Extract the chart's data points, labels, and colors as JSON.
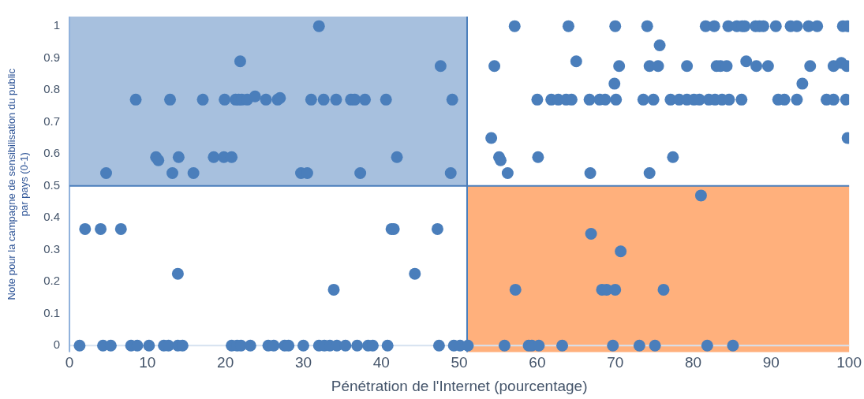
{
  "chart_data": {
    "type": "scatter",
    "xlabel": "Pénétration de l'Internet (pourcentage)",
    "ylabel": "Note pour la campagne de sensibilisation du public par pays (0-1)",
    "xlim": [
      0,
      100
    ],
    "ylim": [
      -0.02,
      1.03
    ],
    "xticks": [
      0,
      10,
      20,
      30,
      40,
      50,
      60,
      70,
      80,
      90,
      100
    ],
    "yticks": [
      0,
      0.1,
      0.2,
      0.3,
      0.4,
      0.5,
      0.6,
      0.7,
      0.8,
      0.9,
      1
    ],
    "marker": "circle",
    "grid": false,
    "legend": false,
    "ref_lines": [
      {
        "axis": "x",
        "value": 51,
        "color": "#4a7ebb"
      },
      {
        "axis": "y",
        "value": 0.5,
        "color": "#4a7ebb"
      }
    ],
    "bands": [
      {
        "axis": "x",
        "from": 0,
        "to": 51,
        "color": "#a7c0de"
      },
      {
        "axis": "x",
        "from": 51,
        "to": 100,
        "color": "#ffb07c"
      }
    ],
    "series": [
      {
        "color": "#4a7ebb",
        "x": [
          32.0,
          21.9,
          8.5,
          12.9,
          17.1,
          19.9,
          21.3,
          21.7,
          22.1,
          22.8,
          23.8,
          25.2,
          26.7,
          27.0,
          31.0,
          32.6,
          34.2,
          36.1,
          36.6,
          37.9,
          40.6,
          49.1,
          47.6,
          11.1,
          11.4,
          14.0,
          18.5,
          19.8,
          20.8,
          42.0,
          4.7,
          13.2,
          15.9,
          29.7,
          30.5,
          37.3,
          48.9,
          57.1,
          64.0,
          70.0,
          74.1,
          81.6,
          82.7,
          84.5,
          85.6,
          86.3,
          86.6,
          88.0,
          88.5,
          89.0,
          90.6,
          92.5,
          93.3,
          94.8,
          95.9,
          99.2,
          99.8,
          75.7,
          65.0,
          86.8,
          54.5,
          70.5,
          74.4,
          75.5,
          79.2,
          83.0,
          83.5,
          84.3,
          88.1,
          89.6,
          95.0,
          98.0,
          99.0,
          99.7,
          69.9,
          94.0,
          60.0,
          61.8,
          62.7,
          63.7,
          64.4,
          66.7,
          68.0,
          68.7,
          70.1,
          73.6,
          74.9,
          77.1,
          78.2,
          79.2,
          80.1,
          80.8,
          82.0,
          82.8,
          83.7,
          84.6,
          86.2,
          90.9,
          91.7,
          93.3,
          97.1,
          98.0,
          99.6,
          54.1,
          55.1,
          55.3,
          56.2,
          60.1,
          99.8,
          77.4,
          66.8,
          74.4,
          2.0,
          4.0,
          6.6,
          41.3,
          41.6,
          47.2,
          13.9,
          44.3,
          33.9,
          1.3,
          4.3,
          5.3,
          7.9,
          8.7,
          10.2,
          12.1,
          12.7,
          13.9,
          14.5,
          20.8,
          21.5,
          22.0,
          23.2,
          25.5,
          26.2,
          27.6,
          28.1,
          30.0,
          32.0,
          32.7,
          33.4,
          34.3,
          35.4,
          36.9,
          38.3,
          38.9,
          40.8,
          47.4,
          49.3,
          50.1,
          51.1,
          55.8,
          58.9,
          59.3,
          60.2,
          63.2,
          69.7,
          73.1,
          75.1,
          81.8,
          85.1,
          57.2,
          81.0,
          66.9,
          70.7,
          68.3,
          68.9,
          70.0,
          76.2
        ],
        "values": [
          1.0,
          0.89,
          0.77,
          0.77,
          0.77,
          0.77,
          0.77,
          0.77,
          0.77,
          0.77,
          0.78,
          0.77,
          0.77,
          0.775,
          0.77,
          0.77,
          0.77,
          0.77,
          0.77,
          0.77,
          0.77,
          0.77,
          0.875,
          0.59,
          0.58,
          0.59,
          0.59,
          0.59,
          0.59,
          0.59,
          0.54,
          0.54,
          0.54,
          0.54,
          0.54,
          0.54,
          0.54,
          1,
          1,
          1,
          1,
          1,
          1,
          1,
          1,
          1,
          1,
          1,
          1,
          1,
          1,
          1,
          1,
          1,
          1,
          1,
          1,
          0.94,
          0.89,
          0.89,
          0.875,
          0.875,
          0.875,
          0.875,
          0.875,
          0.875,
          0.875,
          0.875,
          0.875,
          0.875,
          0.875,
          0.875,
          0.885,
          0.875,
          0.82,
          0.82,
          0.77,
          0.77,
          0.77,
          0.77,
          0.77,
          0.77,
          0.77,
          0.77,
          0.77,
          0.77,
          0.77,
          0.77,
          0.77,
          0.77,
          0.77,
          0.77,
          0.77,
          0.77,
          0.77,
          0.77,
          0.77,
          0.77,
          0.77,
          0.77,
          0.77,
          0.77,
          0.77,
          0.65,
          0.59,
          0.58,
          0.54,
          0.59,
          0.65,
          0.59,
          0.54,
          0.54,
          0.365,
          0.365,
          0.365,
          0.365,
          0.365,
          0.365,
          0.225,
          0.225,
          0.175,
          0,
          0,
          0,
          0,
          0,
          0,
          0,
          0,
          0,
          0,
          0,
          0,
          0,
          0,
          0,
          0,
          0,
          0,
          0,
          0,
          0,
          0,
          0,
          0,
          0,
          0,
          0,
          0,
          0,
          0,
          0,
          0,
          0,
          0,
          0,
          0,
          0,
          0,
          0,
          0,
          0,
          0,
          0.175,
          0.47,
          0.35,
          0.295,
          0.175,
          0.175,
          0.175,
          0.175
        ]
      }
    ]
  }
}
